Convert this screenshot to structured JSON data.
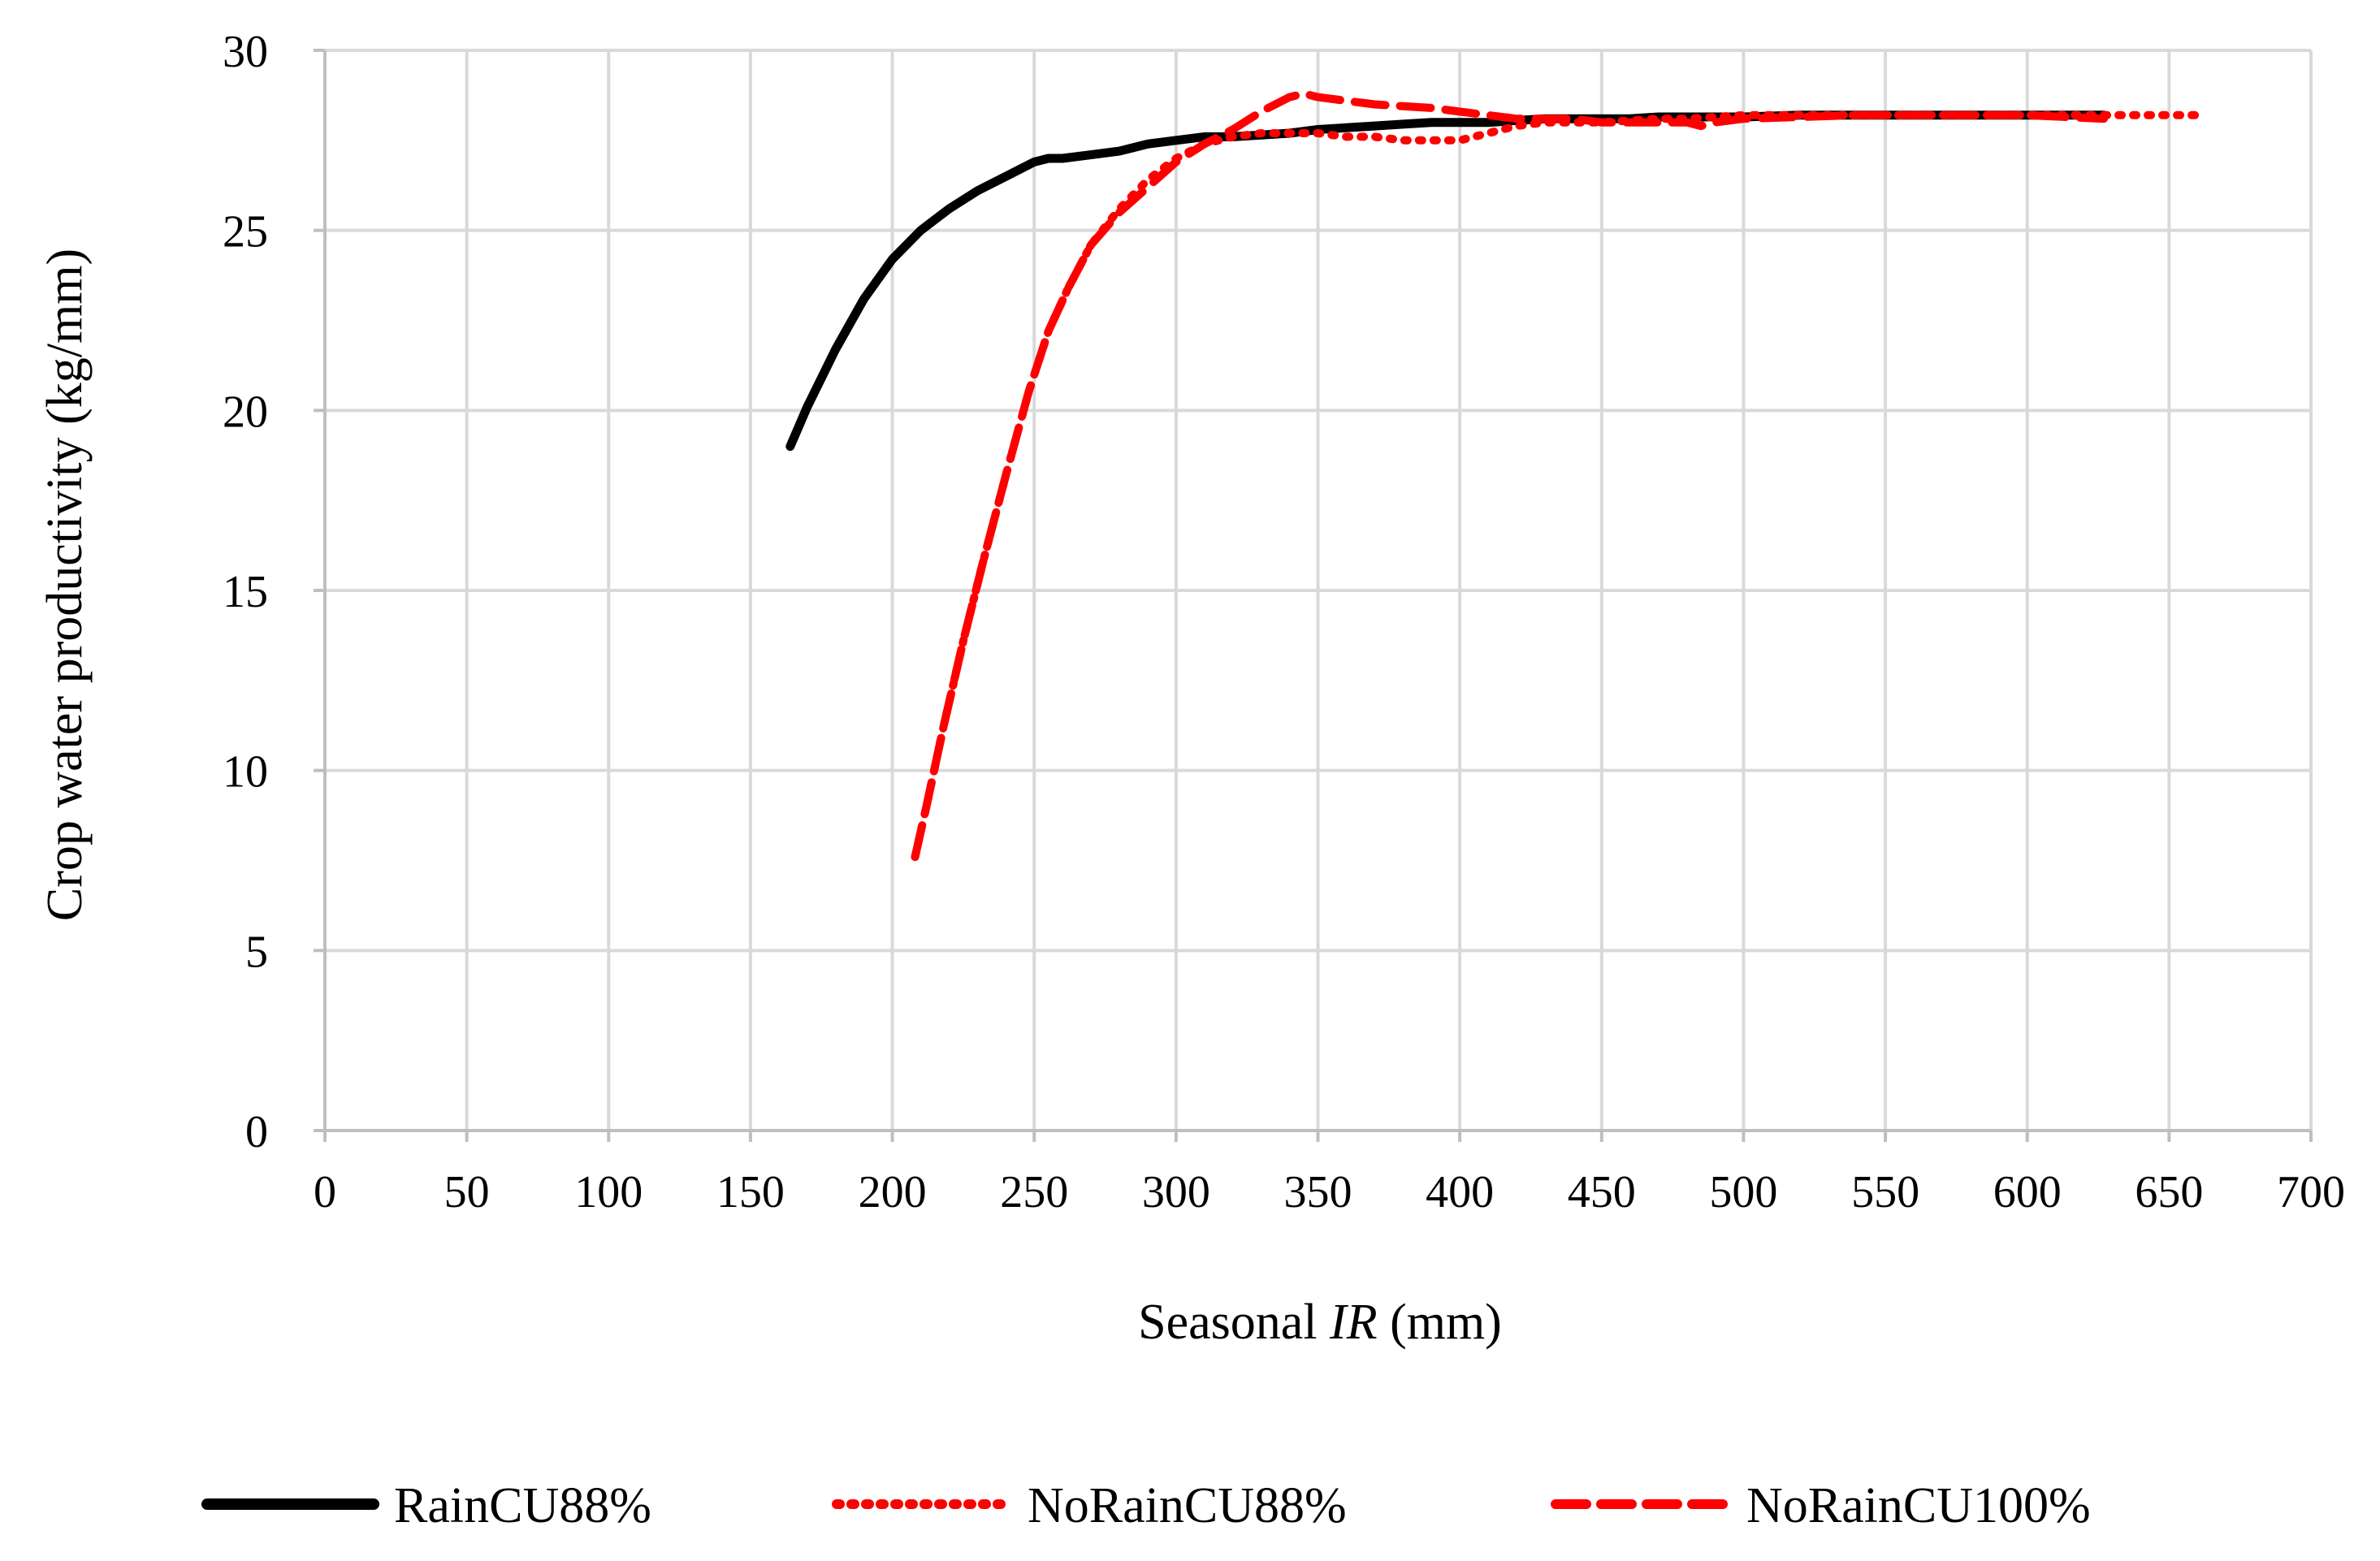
{
  "chart_data": {
    "type": "line",
    "title": "",
    "xlabel_prefix": "Seasonal ",
    "xlabel_italic": "IR",
    "xlabel_suffix": " (mm)",
    "ylabel": "Crop water productivity  (kg/mm)",
    "xlim": [
      0,
      700
    ],
    "ylim": [
      0,
      30
    ],
    "xticks": [
      0,
      50,
      100,
      150,
      200,
      250,
      300,
      350,
      400,
      450,
      500,
      550,
      600,
      650,
      700
    ],
    "yticks": [
      0,
      5,
      10,
      15,
      20,
      25,
      30
    ],
    "grid": true,
    "legend_position": "bottom",
    "series": [
      {
        "name": "RainCU88%",
        "color": "#000000",
        "style": "solid",
        "x": [
          164,
          170,
          180,
          190,
          200,
          210,
          220,
          230,
          240,
          250,
          255,
          260,
          270,
          280,
          290,
          300,
          310,
          320,
          330,
          340,
          350,
          360,
          370,
          380,
          390,
          400,
          410,
          420,
          430,
          440,
          450,
          460,
          470,
          480,
          490,
          500,
          520,
          540,
          560,
          580,
          600,
          627
        ],
        "y": [
          19.0,
          20.1,
          21.7,
          23.1,
          24.2,
          25.0,
          25.6,
          26.1,
          26.5,
          26.9,
          27.0,
          27.0,
          27.1,
          27.2,
          27.4,
          27.5,
          27.6,
          27.6,
          27.65,
          27.7,
          27.8,
          27.85,
          27.9,
          27.95,
          28.0,
          28.0,
          28.0,
          28.05,
          28.1,
          28.1,
          28.1,
          28.1,
          28.15,
          28.15,
          28.15,
          28.15,
          28.2,
          28.2,
          28.2,
          28.2,
          28.2,
          28.2
        ]
      },
      {
        "name": "NoRainCU88%",
        "color": "#ff0000",
        "style": "dotted",
        "x": [
          208,
          212,
          218,
          225,
          232,
          240,
          248,
          255,
          262,
          270,
          280,
          290,
          300,
          310,
          320,
          330,
          340,
          350,
          360,
          370,
          380,
          390,
          400,
          410,
          420,
          430,
          440,
          450,
          460,
          470,
          480,
          490,
          500,
          520,
          540,
          560,
          580,
          600,
          620,
          640,
          663
        ],
        "y": [
          7.6,
          9.0,
          11.2,
          13.6,
          15.8,
          18.2,
          20.5,
          22.2,
          23.4,
          24.6,
          25.6,
          26.4,
          27.0,
          27.4,
          27.6,
          27.7,
          27.7,
          27.7,
          27.6,
          27.6,
          27.5,
          27.5,
          27.5,
          27.7,
          27.9,
          28.0,
          28.0,
          28.0,
          28.05,
          28.1,
          28.1,
          28.15,
          28.2,
          28.2,
          28.2,
          28.2,
          28.2,
          28.2,
          28.2,
          28.2,
          28.2
        ]
      },
      {
        "name": "NoRainCU100%",
        "color": "#ff0000",
        "style": "dashed",
        "x": [
          208,
          212,
          218,
          225,
          232,
          240,
          248,
          255,
          262,
          270,
          280,
          290,
          300,
          310,
          320,
          330,
          340,
          345,
          350,
          360,
          370,
          380,
          390,
          400,
          410,
          420,
          430,
          440,
          450,
          460,
          470,
          480,
          485,
          490,
          500,
          520,
          540,
          560,
          580,
          600,
          627
        ],
        "y": [
          7.6,
          9.0,
          11.2,
          13.6,
          15.8,
          18.2,
          20.5,
          22.2,
          23.4,
          24.6,
          25.5,
          26.2,
          26.9,
          27.4,
          27.8,
          28.3,
          28.7,
          28.8,
          28.7,
          28.6,
          28.5,
          28.45,
          28.4,
          28.3,
          28.2,
          28.1,
          28.1,
          28.1,
          28.0,
          28.0,
          28.0,
          28.0,
          27.9,
          28.0,
          28.1,
          28.15,
          28.2,
          28.2,
          28.2,
          28.2,
          28.1
        ]
      }
    ]
  }
}
